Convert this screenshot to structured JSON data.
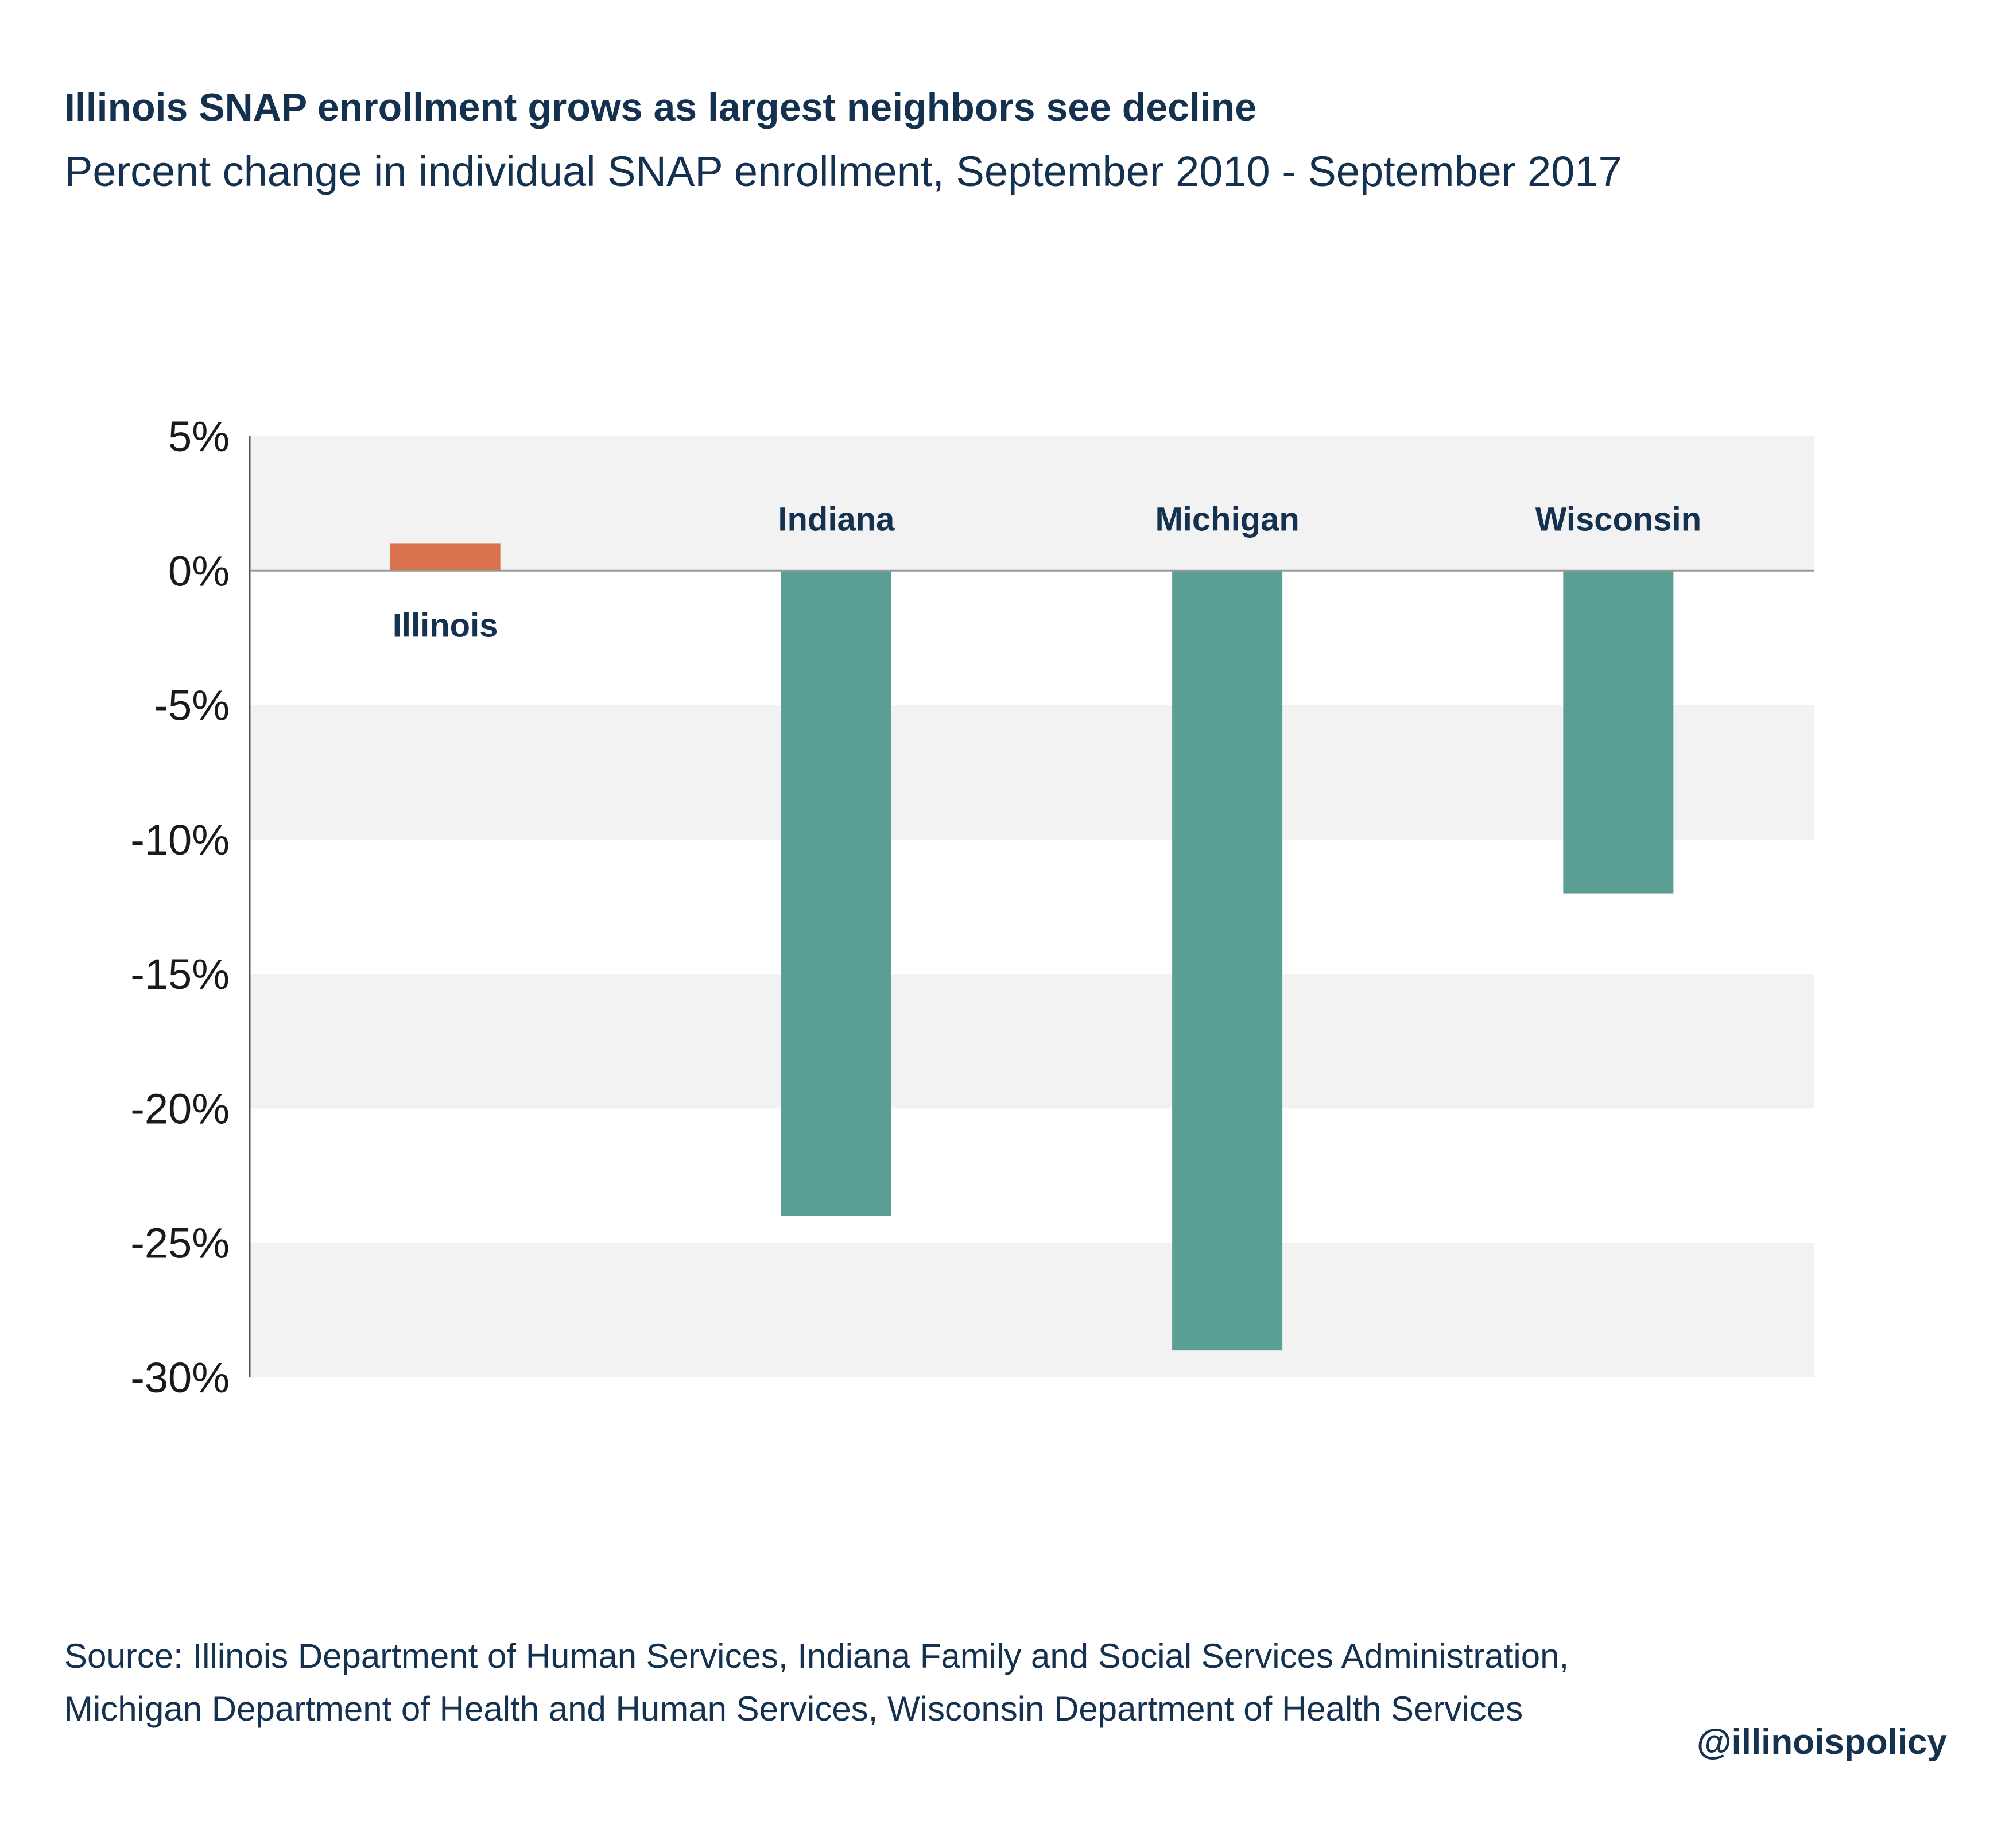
{
  "chart_data": {
    "type": "bar",
    "title": "Illinois SNAP enrollment grows as largest neighbors see decline",
    "subtitle": "Percent change in individual SNAP enrollment, September 2010 - September 2017",
    "categories": [
      "Illinois",
      "Indiana",
      "Michigan",
      "Wisconsin"
    ],
    "values": [
      1,
      -24,
      -29,
      -12
    ],
    "colors": [
      "#d9714d",
      "#5a9e94",
      "#5a9e94",
      "#5a9e94"
    ],
    "ylim": [
      -30,
      5
    ],
    "yticks": [
      5,
      0,
      -5,
      -10,
      -15,
      -20,
      -25,
      -30
    ],
    "ytick_labels": [
      "5%",
      "0%",
      "-5%",
      "-10%",
      "-15%",
      "-20%",
      "-25%",
      "-30%"
    ],
    "xlabel": "",
    "ylabel": "",
    "grid": "alternating-bands",
    "band_color": "#f2f2f2",
    "zero_line_color": "#999999"
  },
  "footer": {
    "source_line1": "Source: Illinois Department of Human Services, Indiana Family and Social Services Administration,",
    "source_line2": "Michigan Department of Health and Human Services, Wisconsin Department of Health Services",
    "handle": "@illinoispolicy"
  }
}
